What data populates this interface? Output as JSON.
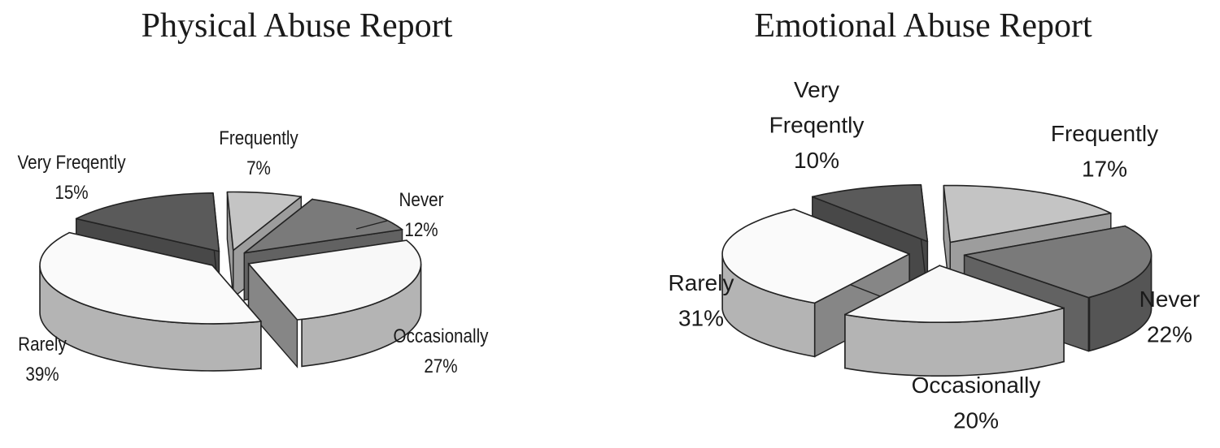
{
  "chart_data": [
    {
      "type": "pie",
      "title": "Physical Abuse Report",
      "slices": [
        {
          "label": "Frequently",
          "value": 7,
          "value_label": "7%",
          "color": "#c4c4c4"
        },
        {
          "label": "Never",
          "value": 12,
          "value_label": "12%",
          "color": "#7a7a7a"
        },
        {
          "label": "Occasionally",
          "value": 27,
          "value_label": "27%",
          "color": "#f8f8f8"
        },
        {
          "label": "Rarely",
          "value": 39,
          "value_label": "39%",
          "color": "#fafafa"
        },
        {
          "label": "Very Freqently",
          "value": 15,
          "value_label": "15%",
          "color": "#5a5a5a"
        }
      ],
      "style": "3d-exploded"
    },
    {
      "type": "pie",
      "title": "Emotional Abuse Report",
      "slices": [
        {
          "label": "Frequently",
          "value": 17,
          "value_label": "17%",
          "color": "#c4c4c4"
        },
        {
          "label": "Never",
          "value": 22,
          "value_label": "22%",
          "color": "#7a7a7a"
        },
        {
          "label": "Occasionally",
          "value": 20,
          "value_label": "20%",
          "color": "#f8f8f8"
        },
        {
          "label": "Rarely",
          "value": 31,
          "value_label": "31%",
          "color": "#fafafa"
        },
        {
          "label": "Very Freqently",
          "value": 10,
          "value_label": "10%",
          "color": "#5a5a5a"
        }
      ],
      "style": "3d-exploded"
    }
  ]
}
